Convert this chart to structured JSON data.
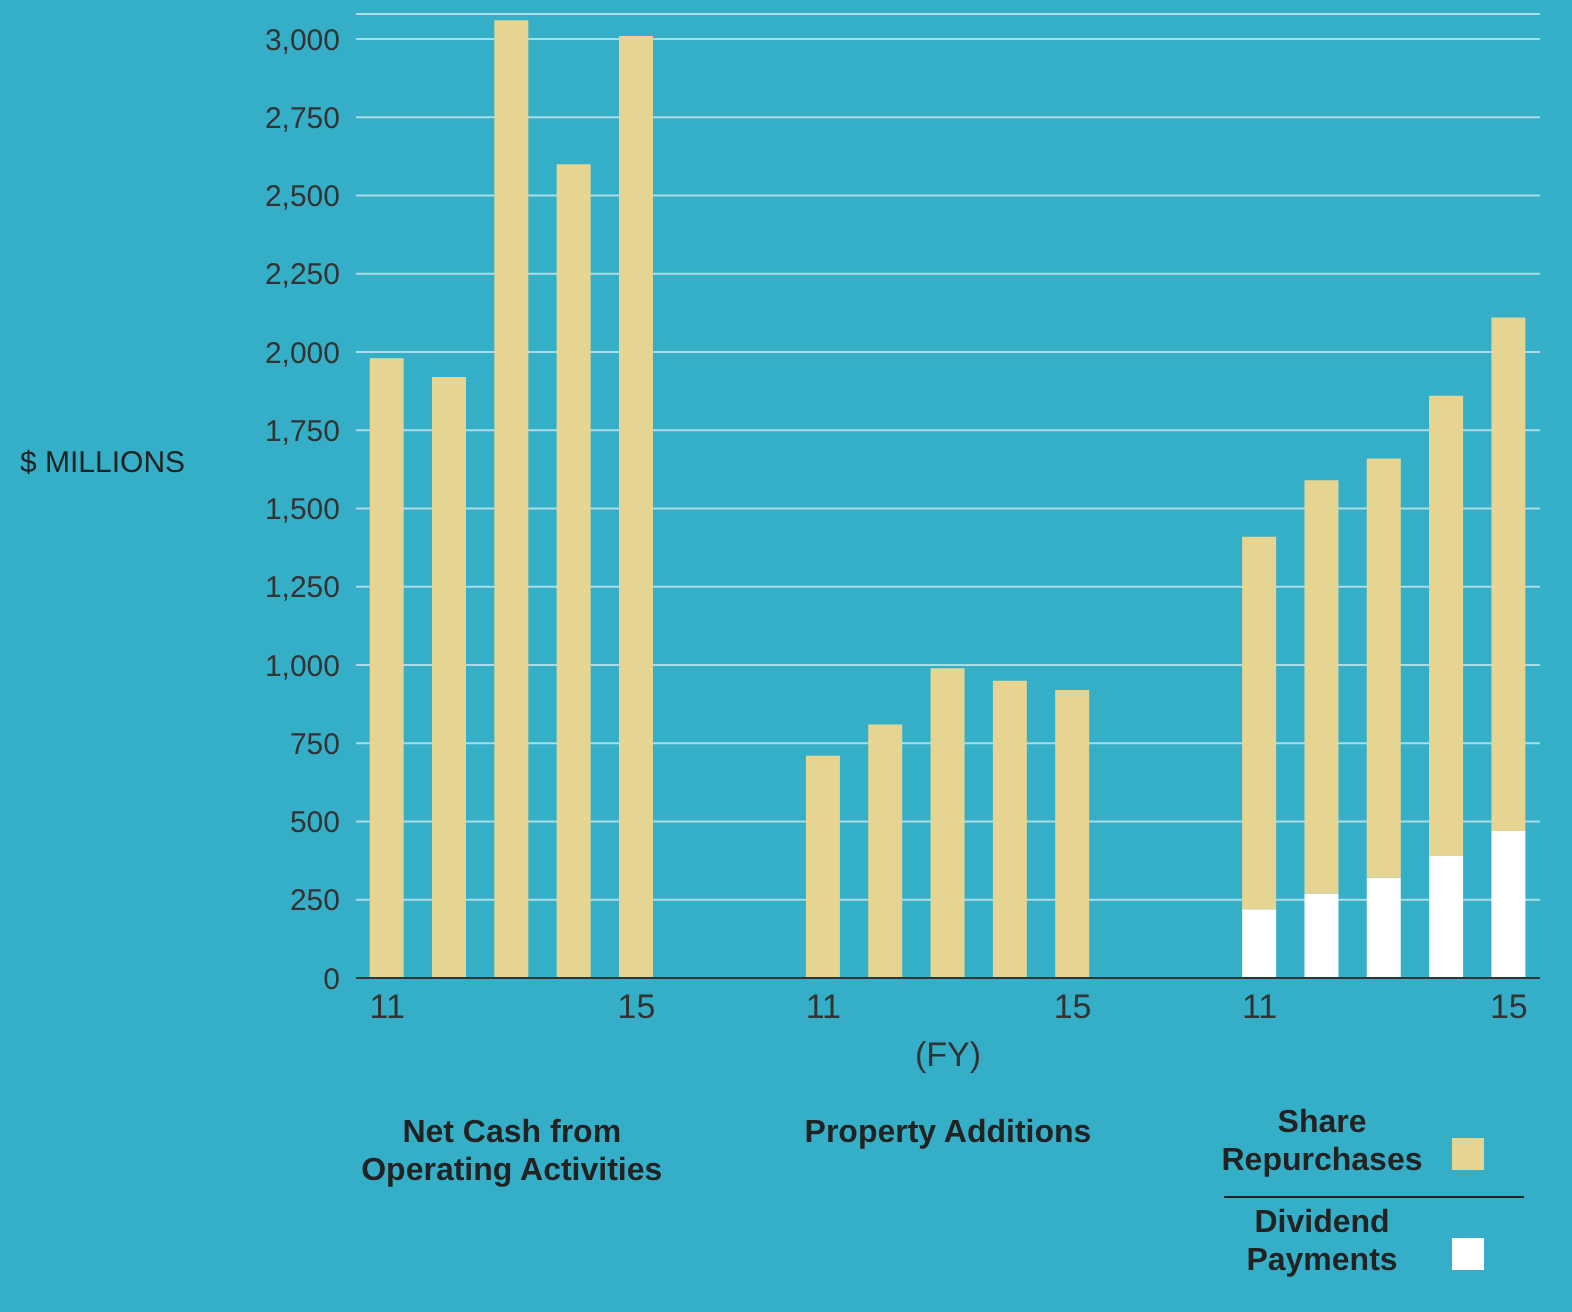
{
  "chart_data": {
    "type": "bar",
    "stacked": true,
    "ylabel": "$ MILLIONS",
    "xlabel": "(FY)",
    "categories": [
      "11",
      null,
      null,
      null,
      "15",
      null,
      null,
      "11",
      null,
      null,
      null,
      "15",
      null,
      null,
      "11",
      null,
      null,
      null,
      "15"
    ],
    "series": [
      {
        "name": "Dividend Payments",
        "color": "#ffffff",
        "values": [
          null,
          null,
          null,
          null,
          null,
          null,
          null,
          null,
          null,
          null,
          null,
          null,
          null,
          null,
          220,
          270,
          320,
          390,
          470
        ]
      },
      {
        "name": "Share Repurchases",
        "color": "#e6d592",
        "values": [
          null,
          null,
          null,
          null,
          null,
          null,
          null,
          null,
          null,
          null,
          null,
          null,
          null,
          null,
          1190,
          1320,
          1340,
          1470,
          1640
        ]
      },
      {
        "color": "#e6d592",
        "values": [
          1980,
          1920,
          3060,
          2600,
          3010,
          null,
          null,
          710,
          810,
          990,
          950,
          920,
          null,
          null,
          null,
          null,
          null,
          null,
          null
        ]
      }
    ],
    "ylim": [
      0,
      3080
    ],
    "yticks": [
      0,
      {
        "value": 250,
        "label": "250"
      },
      {
        "value": 500,
        "label": "500"
      },
      {
        "value": 750,
        "label": "750"
      },
      {
        "value": 1000,
        "label": "1,000"
      },
      {
        "value": 1250,
        "label": "1,250"
      },
      {
        "value": 1500,
        "label": "1,500"
      },
      {
        "value": 1750,
        "label": "1,750"
      },
      {
        "value": 2000,
        "label": "2,000"
      },
      {
        "value": 2250,
        "label": "2,250"
      },
      {
        "value": 2500,
        "label": "2,500"
      },
      {
        "value": 2750,
        "label": "2,750"
      },
      {
        "value": 3000,
        "label": "3,000"
      }
    ],
    "grid": "y",
    "legend": "bottom right",
    "annotations": [
      "Net Cash from Operating Activities",
      "Property Additions"
    ]
  }
}
